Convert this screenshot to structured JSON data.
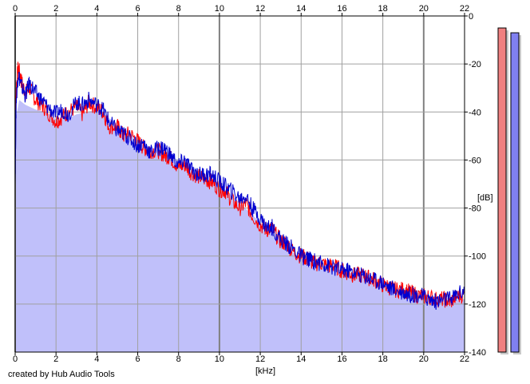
{
  "credit": "created by Hub Audio Tools",
  "chart_data": {
    "type": "area",
    "title": "",
    "xlabel": "[kHz]",
    "ylabel": "[dB]",
    "xlim": [
      0,
      22
    ],
    "ylim": [
      -140,
      0
    ],
    "x_ticks": [
      0,
      2,
      4,
      6,
      8,
      10,
      12,
      14,
      16,
      18,
      20,
      22
    ],
    "y_ticks": [
      0,
      -20,
      -40,
      -60,
      -80,
      -100,
      -120,
      -140
    ],
    "grid": true,
    "legend": "none",
    "colors": {
      "fill": "#c0c0fa",
      "grid": "#a0a0a0",
      "left_channel": "#ff0000",
      "right_channel": "#0000d0",
      "left_meter": "#f08080",
      "right_meter": "#8080f0"
    },
    "envelope": {
      "x": [
        0,
        0.05,
        0.2,
        0.5,
        1,
        1.5,
        2,
        2.5,
        3,
        3.5,
        4,
        4.5,
        5,
        5.5,
        6,
        6.5,
        7,
        7.5,
        8,
        8.5,
        9,
        9.5,
        10,
        10.5,
        11,
        11.5,
        12,
        12.5,
        13,
        13.5,
        14,
        14.5,
        15,
        15.5,
        16,
        16.5,
        17,
        17.5,
        18,
        18.5,
        19,
        19.5,
        20,
        20.5,
        21,
        21.5,
        22
      ],
      "y": [
        -70,
        -42,
        -35,
        -37,
        -39,
        -40,
        -43,
        -43,
        -41,
        -40,
        -39,
        -42,
        -45,
        -48,
        -51,
        -54,
        -56,
        -58,
        -60,
        -62,
        -64,
        -67,
        -70,
        -74,
        -78,
        -82,
        -86,
        -90,
        -94,
        -98,
        -101,
        -103,
        -104,
        -105,
        -106,
        -107,
        -108,
        -110,
        -112,
        -113,
        -114,
        -115,
        -116,
        -117,
        -117,
        -118,
        -118
      ]
    },
    "series": [
      {
        "color": "#ff0000",
        "x": [
          0,
          0.05,
          0.15,
          0.3,
          0.5,
          0.7,
          1,
          1.3,
          1.6,
          2,
          2.3,
          2.6,
          3,
          3.3,
          3.6,
          4,
          4.3,
          4.6,
          5,
          5.3,
          5.6,
          6,
          6.3,
          6.6,
          7,
          7.3,
          7.6,
          8,
          8.3,
          8.6,
          9,
          9.3,
          9.6,
          10,
          10.3,
          10.6,
          11,
          11.3,
          11.6,
          12,
          12.3,
          12.6,
          13,
          13.3,
          13.6,
          14,
          14.3,
          14.6,
          15,
          15.3,
          15.6,
          16,
          16.3,
          16.6,
          17,
          17.3,
          17.6,
          18,
          18.3,
          18.6,
          19,
          19.3,
          19.6,
          20,
          20.3,
          20.6,
          21,
          21.3,
          21.6,
          22
        ],
        "y": [
          -60,
          -30,
          -21,
          -27,
          -32,
          -30,
          -35,
          -37,
          -40,
          -44,
          -42,
          -40,
          -38,
          -41,
          -36,
          -38,
          -40,
          -46,
          -46,
          -50,
          -49,
          -52,
          -55,
          -56,
          -56,
          -58,
          -59,
          -63,
          -62,
          -65,
          -67,
          -68,
          -69,
          -72,
          -73,
          -77,
          -80,
          -78,
          -83,
          -87,
          -89,
          -89,
          -94,
          -95,
          -98,
          -100,
          -101,
          -103,
          -103,
          -104,
          -104,
          -106,
          -107,
          -108,
          -108,
          -109,
          -110,
          -112,
          -113,
          -114,
          -114,
          -115,
          -116,
          -117,
          -117,
          -118,
          -118,
          -119,
          -117,
          -116
        ]
      },
      {
        "color": "#0000d0",
        "x": [
          0,
          0.05,
          0.15,
          0.3,
          0.5,
          0.7,
          1,
          1.3,
          1.6,
          2,
          2.3,
          2.6,
          3,
          3.3,
          3.6,
          4,
          4.3,
          4.6,
          5,
          5.3,
          5.6,
          6,
          6.3,
          6.6,
          7,
          7.3,
          7.6,
          8,
          8.3,
          8.6,
          9,
          9.3,
          9.6,
          10,
          10.3,
          10.6,
          11,
          11.3,
          11.6,
          12,
          12.3,
          12.6,
          13,
          13.3,
          13.6,
          14,
          14.3,
          14.6,
          15,
          15.3,
          15.6,
          16,
          16.3,
          16.6,
          17,
          17.3,
          17.6,
          18,
          18.3,
          18.6,
          19,
          19.3,
          19.6,
          20,
          20.3,
          20.6,
          21,
          21.3,
          21.6,
          22
        ],
        "y": [
          -70,
          -35,
          -24,
          -29,
          -33,
          -28,
          -32,
          -35,
          -38,
          -41,
          -39,
          -41,
          -36,
          -37,
          -35,
          -37,
          -39,
          -44,
          -48,
          -49,
          -51,
          -54,
          -53,
          -57,
          -55,
          -55,
          -58,
          -62,
          -60,
          -64,
          -66,
          -66,
          -66,
          -69,
          -71,
          -73,
          -76,
          -75,
          -80,
          -84,
          -88,
          -88,
          -93,
          -95,
          -97,
          -100,
          -101,
          -102,
          -103,
          -104,
          -105,
          -106,
          -106,
          -107,
          -108,
          -109,
          -110,
          -111,
          -113,
          -114,
          -115,
          -116,
          -116,
          -117,
          -118,
          -119,
          -118,
          -118,
          -116,
          -114
        ]
      }
    ],
    "meters": [
      {
        "channel": "left",
        "level_db": -5
      },
      {
        "channel": "right",
        "level_db": -7
      }
    ]
  }
}
